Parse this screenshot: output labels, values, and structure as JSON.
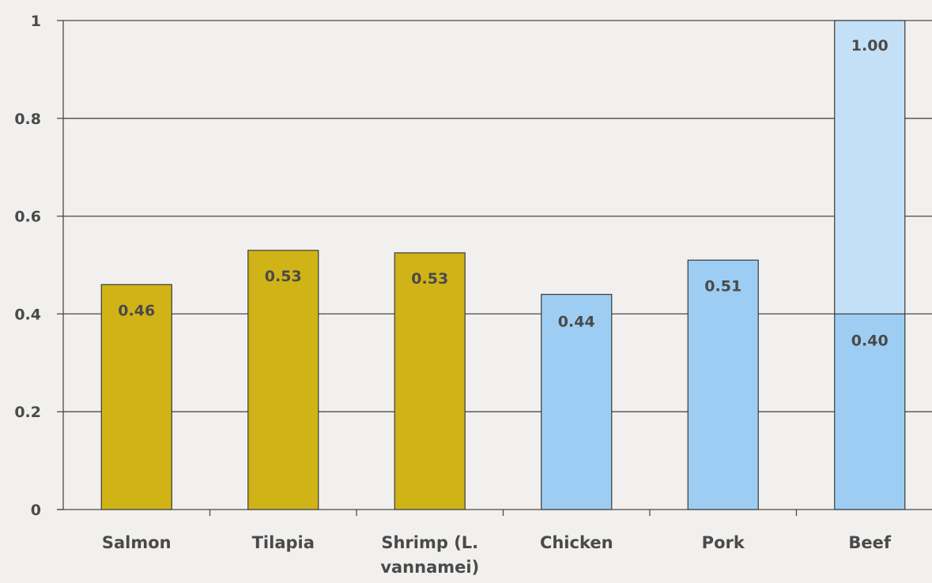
{
  "chart_data": {
    "type": "bar",
    "title": "",
    "xlabel": "",
    "ylabel": "",
    "ylim": [
      0,
      1
    ],
    "yticks": [
      "0",
      "0.2",
      "0.4",
      "0.6",
      "0.8",
      "1"
    ],
    "grid": true,
    "categories": [
      {
        "lines": [
          "Salmon"
        ]
      },
      {
        "lines": [
          "Tilapia"
        ]
      },
      {
        "lines": [
          "Shrimp (L.",
          "vannamei)"
        ]
      },
      {
        "lines": [
          "Chicken"
        ]
      },
      {
        "lines": [
          "Pork"
        ]
      },
      {
        "lines": [
          "Beef"
        ]
      }
    ],
    "bars": [
      {
        "category": "Salmon",
        "value": 0.46,
        "label": "0.46",
        "color": "#d0b417"
      },
      {
        "category": "Tilapia",
        "value": 0.53,
        "label": "0.53",
        "color": "#d0b417"
      },
      {
        "category": "Shrimp (L. vannamei)",
        "value": 0.525,
        "label": "0.53",
        "color": "#d0b417"
      },
      {
        "category": "Chicken",
        "value": 0.44,
        "label": "0.44",
        "color": "#9dcdf2"
      },
      {
        "category": "Pork",
        "value": 0.51,
        "label": "0.51",
        "color": "#9dcdf2"
      },
      {
        "category": "Beef",
        "value": 0.4,
        "label": "0.40",
        "color": "#9dcdf2",
        "stacked_top": {
          "value": 1.0,
          "label": "1.00",
          "color": "#c3e0f7"
        }
      }
    ],
    "colors": {
      "aquaculture": "#d0b417",
      "livestock": "#9dcdf2",
      "beef_upper": "#c3e0f7",
      "gridline": "#4a4a4a"
    }
  }
}
